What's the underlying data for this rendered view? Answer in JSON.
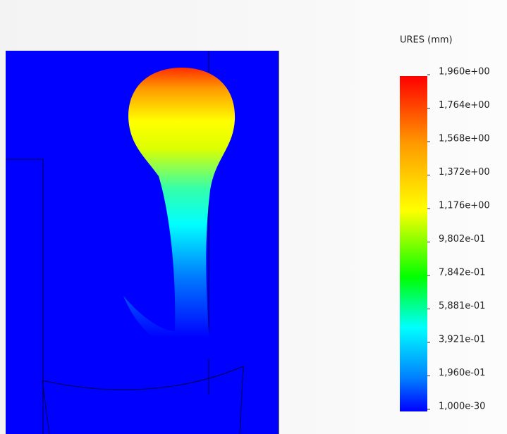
{
  "legend": {
    "title": "URES (mm)",
    "labels": [
      "1,960e+00",
      "1,764e+00",
      "1,568e+00",
      "1,372e+00",
      "1,176e+00",
      "9,802e-01",
      "7,842e-01",
      "5,881e-01",
      "3,921e-01",
      "1,960e-01",
      "1,000e-30"
    ]
  }
}
